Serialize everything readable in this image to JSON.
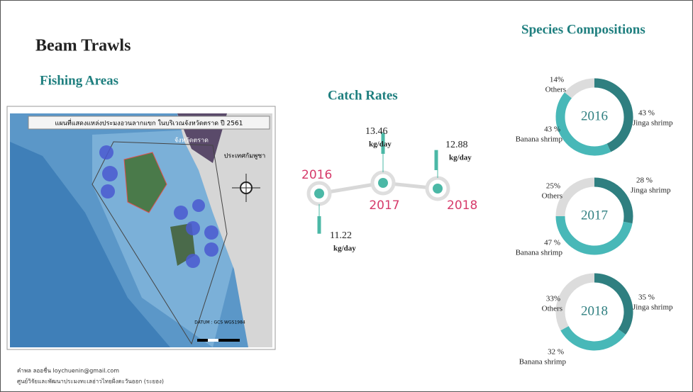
{
  "title": "Beam Trawls",
  "fishing_areas": {
    "heading": "Fishing Areas",
    "map_title": "แผนที่แสดงแหล่งประมงอวนลากแขก ในบริเวณจังหวัดตราด ปี 2561",
    "province": "จังหวัดตราด",
    "country": "ประเทศกัมพูชา",
    "datum": "DATUM : GCS WGS1984"
  },
  "footer": [
    "คำพล ลออชื่น loychuenin@gmail.com",
    "ศูนย์วิจัยและพัฒนาประมงทะเลอ่าวไทยฝั่งตะวันออก (ระยอง)"
  ],
  "catch_rates": {
    "heading": "Catch Rates",
    "unit": "kg/day",
    "years": [
      {
        "year": "2016",
        "value": 11.22
      },
      {
        "year": "2017",
        "value": 13.46
      },
      {
        "year": "2018",
        "value": 12.88
      }
    ]
  },
  "species": {
    "heading": "Species Compositions",
    "colors": [
      "#2f7f80",
      "#48b8b8",
      "#dcdcdc"
    ],
    "charts": [
      {
        "year": "2016",
        "segments": [
          {
            "name": "Jinga shrimp",
            "value": 43,
            "label": "43 %"
          },
          {
            "name": "Banana shrimp",
            "value": 43,
            "label": "43 %"
          },
          {
            "name": "Others",
            "value": 14,
            "label": "14%"
          }
        ]
      },
      {
        "year": "2017",
        "segments": [
          {
            "name": "Jinga shrimp",
            "value": 28,
            "label": "28 %"
          },
          {
            "name": "Banana shrimp",
            "value": 47,
            "label": "47 %"
          },
          {
            "name": "Others",
            "value": 25,
            "label": "25%"
          }
        ]
      },
      {
        "year": "2018",
        "segments": [
          {
            "name": "Jinga shrimp",
            "value": 35,
            "label": "35 %"
          },
          {
            "name": "Banana shrimp",
            "value": 32,
            "label": "32 %"
          },
          {
            "name": "Others",
            "value": 33,
            "label": "33%"
          }
        ]
      }
    ]
  }
}
